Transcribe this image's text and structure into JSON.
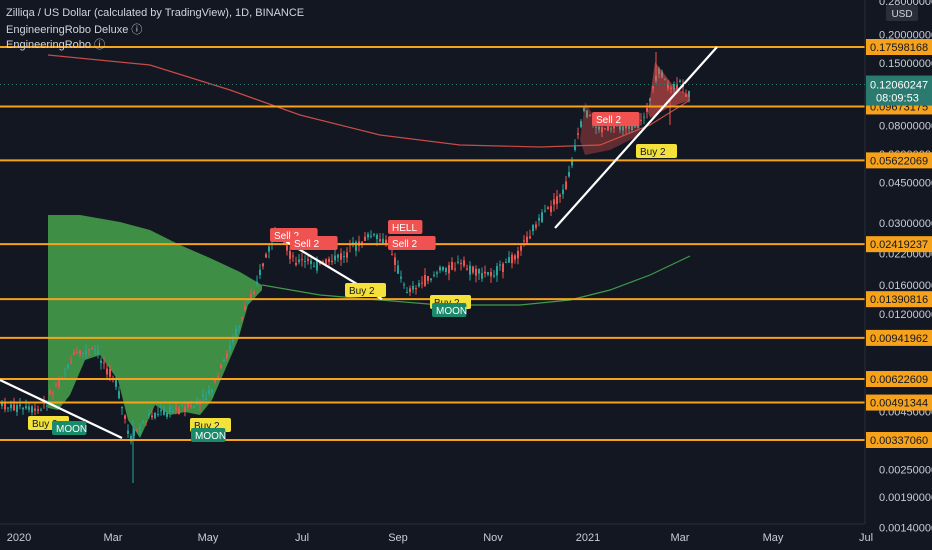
{
  "header": {
    "symbol_line": "Zilliqa / US Dollar (calculated by TradingView), 1D, BINANCE",
    "indicator1": "EngineeringRobo Deluxe ⓘ",
    "indicator2": "EngineeringRobo ⓘ"
  },
  "price_axis": {
    "currency": "USD",
    "ticks": [
      "0.28000000",
      "0.20000000",
      "0.15000000",
      "0.08000000",
      "0.06000000",
      "0.04500000",
      "0.03000000",
      "0.02200000",
      "0.01600000",
      "0.01200000",
      "0.00450000",
      "0.00250000",
      "0.00190000",
      "0.00140000"
    ],
    "current_price": "0.12060247",
    "countdown": "08:09:53"
  },
  "time_axis": {
    "labels": [
      "2020",
      "Mar",
      "May",
      "Jul",
      "Sep",
      "Nov",
      "2021",
      "Mar",
      "May",
      "Jul"
    ]
  },
  "colors": {
    "background": "#131722",
    "level_line": "#f7a21b",
    "up": "#26a69a",
    "down": "#ef5350",
    "cloud": "#4caf50",
    "sell_tag": "#f05252",
    "buy_tag": "#f4e23a",
    "moon_tag": "#1b8a6b",
    "trendline": "#ffffff",
    "ma_red": "#c84b46",
    "ma_green": "#3f9c49",
    "current_price_tag": "#2b7a6f"
  },
  "chart_data": {
    "type": "candlestick",
    "scale": "log",
    "ylim": [
      0.0014,
      0.3
    ],
    "horizontal_levels": [
      "0.17598168",
      "0.09673175",
      "0.05622069",
      "0.02419237",
      "0.01390816",
      "0.00941962",
      "0.00622609",
      "0.00491344",
      "0.00337060"
    ],
    "signals": [
      {
        "text": "Buy 2",
        "kind": "buy"
      },
      {
        "text": "MOON",
        "kind": "moon"
      },
      {
        "text": "Buy 2",
        "kind": "buy"
      },
      {
        "text": "MOON",
        "kind": "moon"
      },
      {
        "text": "Sell 2",
        "kind": "sell"
      },
      {
        "text": "Sell 2",
        "kind": "sell"
      },
      {
        "text": "Buy 2",
        "kind": "buy"
      },
      {
        "text": "HELL",
        "kind": "sell"
      },
      {
        "text": "Sell 2",
        "kind": "sell"
      },
      {
        "text": "Buy 2",
        "kind": "buy"
      },
      {
        "text": "MOON",
        "kind": "moon"
      },
      {
        "text": "Sell 2",
        "kind": "sell"
      },
      {
        "text": "Buy 2",
        "kind": "buy"
      }
    ]
  }
}
